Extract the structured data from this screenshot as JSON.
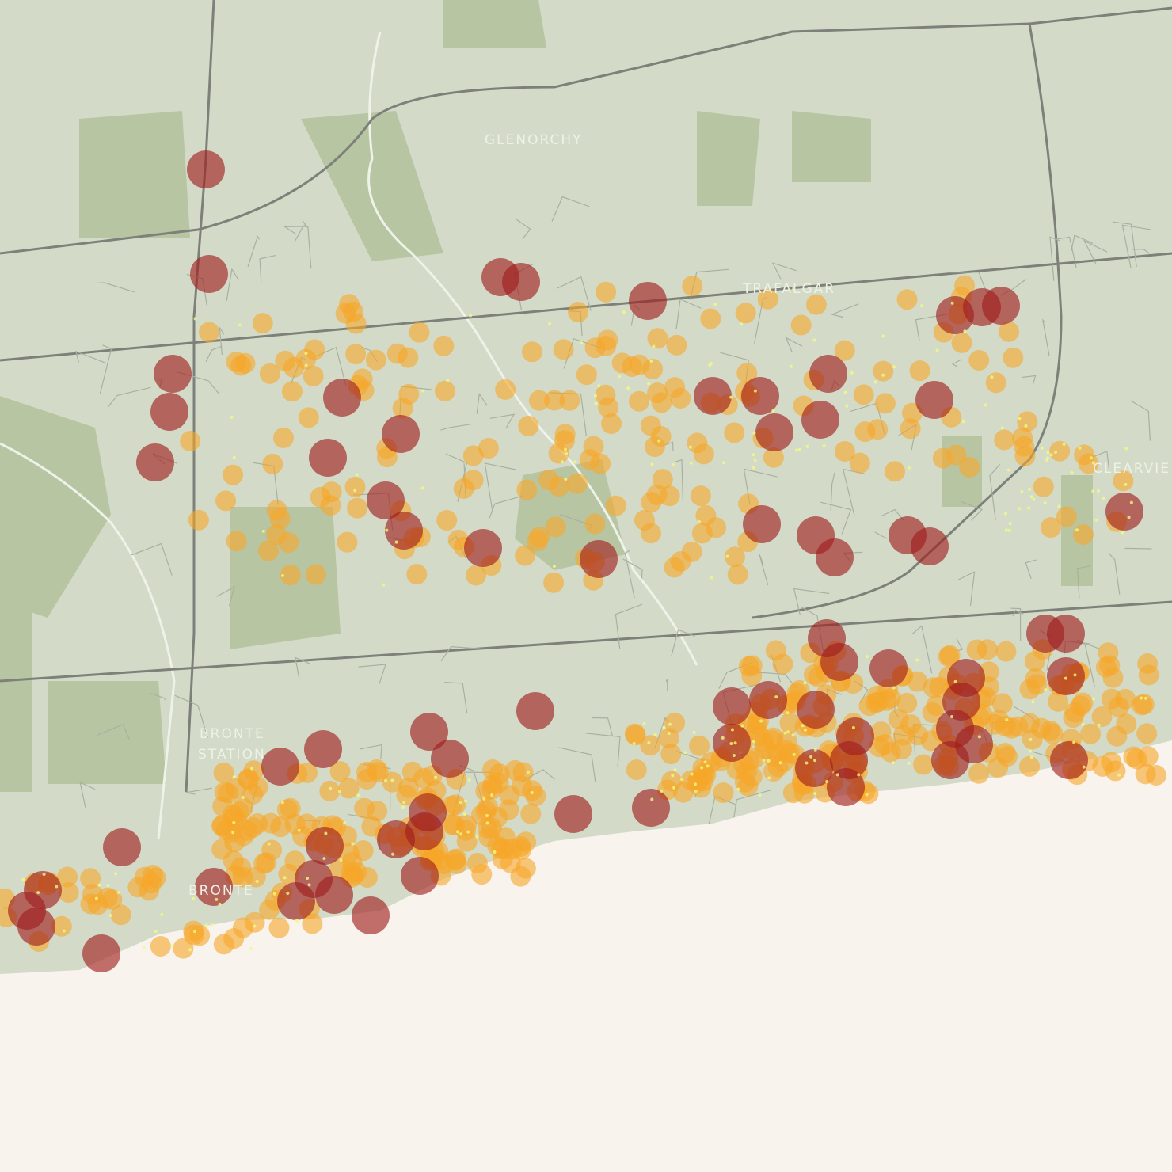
{
  "map": {
    "labels": [
      "GLENORCHY",
      "TRAFALGAR",
      "CLEARVIE",
      "BRONTE",
      "STATION",
      "BRONTE"
    ]
  }
}
